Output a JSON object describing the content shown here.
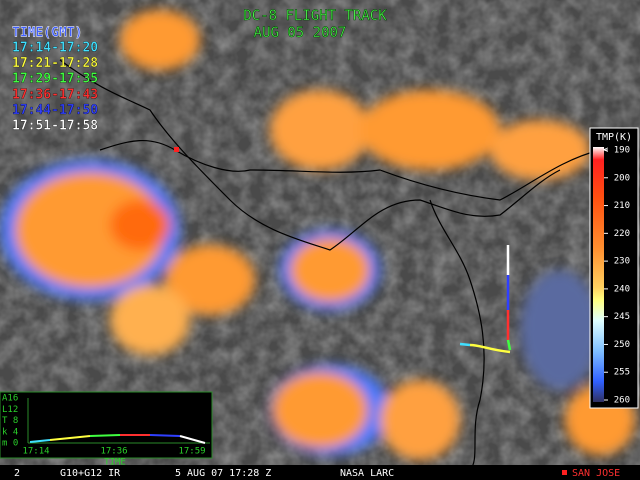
{
  "title": "DC-8 FLIGHT TRACK",
  "date": "AUG 05 2007",
  "legend": {
    "title": "TIME(GMT)",
    "items": [
      {
        "text": "17:14-17:20",
        "color": "#40e0ff"
      },
      {
        "text": "17:21-17:28",
        "color": "#ffff40"
      },
      {
        "text": "17:29-17:35",
        "color": "#40ff40"
      },
      {
        "text": "17:36-17:43",
        "color": "#ff3030"
      },
      {
        "text": "17:44-17:50",
        "color": "#3040ff"
      },
      {
        "text": "17:51-17:58",
        "color": "#ffffff"
      }
    ]
  },
  "colorbar": {
    "title": "TMP(K)",
    "labels": [
      "< 190",
      "200",
      "210",
      "220",
      "230",
      "240",
      "245",
      "250",
      "255",
      "260"
    ]
  },
  "altitude_plot": {
    "y_labels": [
      "A16",
      "L12",
      "T 8",
      "k 4",
      "m 0"
    ],
    "x_labels": [
      "17:14",
      "17:36",
      "17:59"
    ],
    "x_title": "TIME"
  },
  "footer": {
    "frame": "2",
    "sensor": "G10+G12 IR",
    "time": "5 AUG 07 17:28 Z",
    "source": "NASA LARC",
    "place": "SAN JOSE"
  }
}
